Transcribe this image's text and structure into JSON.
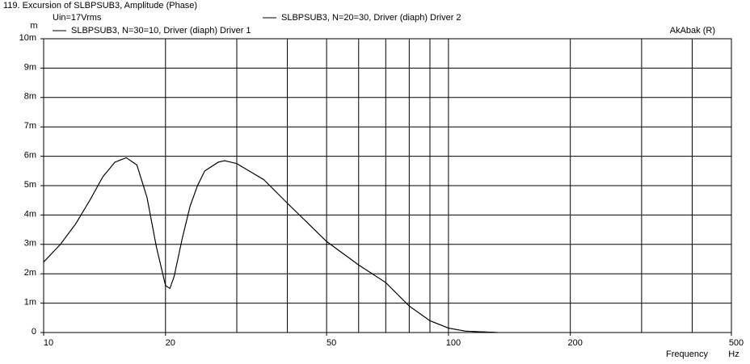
{
  "chart_data": {
    "type": "line",
    "title": "119. Excursion of SLBPSUB3, Amplitude (Phase)",
    "subtitle": "Uin=17Vrms",
    "annotation": "AkAbak (R)",
    "x_label": "Frequency",
    "x_unit": "Hz",
    "y_unit": "m",
    "log_x": true,
    "grid": true,
    "x": [
      10,
      11,
      12,
      13,
      14,
      15,
      16,
      17,
      18,
      19,
      20,
      20.5,
      21,
      22,
      23,
      24,
      25,
      27,
      28,
      30,
      35,
      40,
      50,
      60,
      70,
      80,
      90,
      100,
      110,
      133
    ],
    "series": [
      {
        "name": "SLBPSUB3, N=30=10, Driver (diaph) Driver 1",
        "color": "#000000",
        "values": [
          0.0024,
          0.003,
          0.0037,
          0.0045,
          0.0053,
          0.0058,
          0.00595,
          0.0057,
          0.0046,
          0.0029,
          0.0016,
          0.0015,
          0.0019,
          0.0032,
          0.0043,
          0.005,
          0.0055,
          0.0058,
          0.00585,
          0.00575,
          0.0052,
          0.0044,
          0.0031,
          0.0023,
          0.0017,
          0.0009,
          0.0004,
          0.00015,
          5e-05,
          0
        ]
      },
      {
        "name": "SLBPSUB3, N=20=30, Driver (diaph) Driver 2",
        "color": "#000000",
        "values": [
          0.0024,
          0.003,
          0.0037,
          0.0045,
          0.0053,
          0.0058,
          0.00595,
          0.0057,
          0.0046,
          0.0029,
          0.0016,
          0.0015,
          0.0019,
          0.0032,
          0.0043,
          0.005,
          0.0055,
          0.0058,
          0.00585,
          0.00575,
          0.0052,
          0.0044,
          0.0031,
          0.0023,
          0.0017,
          0.0009,
          0.0004,
          0.00015,
          5e-05,
          0
        ]
      }
    ],
    "xlim": [
      10,
      500
    ],
    "xticks": [
      10,
      20,
      50,
      100,
      200,
      500
    ],
    "xgrid": [
      20,
      30,
      40,
      50,
      60,
      70,
      80,
      90,
      100,
      200,
      300,
      400
    ],
    "ylim": [
      0,
      0.01
    ],
    "yticks": [
      0,
      {
        "value": 0.001,
        "label": "1m"
      },
      {
        "value": 0.002,
        "label": "2m"
      },
      {
        "value": 0.003,
        "label": "3m"
      },
      {
        "value": 0.004,
        "label": "4m"
      },
      {
        "value": 0.005,
        "label": "5m"
      },
      {
        "value": 0.006,
        "label": "6m"
      },
      {
        "value": 0.007,
        "label": "7m"
      },
      {
        "value": 0.008,
        "label": "8m"
      },
      {
        "value": 0.009,
        "label": "9m"
      },
      {
        "value": 0.01,
        "label": "10m"
      }
    ]
  }
}
